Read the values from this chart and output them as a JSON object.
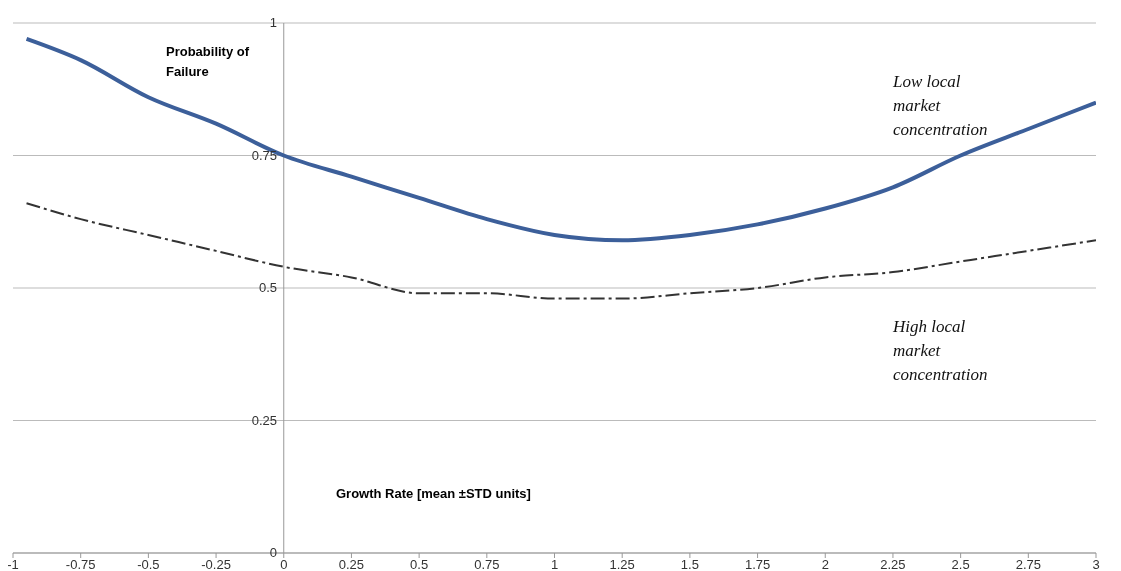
{
  "chart_data": {
    "type": "line",
    "xlabel": "Growth Rate [mean ±STD units]",
    "ylabel": "Probability of Failure",
    "x": [
      -0.95,
      -0.75,
      -0.5,
      -0.25,
      0,
      0.25,
      0.5,
      0.75,
      1,
      1.25,
      1.5,
      1.75,
      2,
      2.25,
      2.5,
      2.75,
      3
    ],
    "series": [
      {
        "name": "Low local market concentration",
        "color": "#3c5f9a",
        "line_style": "solid",
        "values": [
          0.97,
          0.93,
          0.86,
          0.81,
          0.75,
          0.71,
          0.67,
          0.63,
          0.6,
          0.59,
          0.6,
          0.62,
          0.65,
          0.69,
          0.75,
          0.8,
          0.85
        ]
      },
      {
        "name": "High local market concentration",
        "color": "#333333",
        "line_style": "dashed",
        "values": [
          0.66,
          0.63,
          0.6,
          0.57,
          0.54,
          0.52,
          0.49,
          0.49,
          0.48,
          0.48,
          0.49,
          0.5,
          0.52,
          0.53,
          0.55,
          0.57,
          0.59
        ]
      }
    ],
    "xlim": [
      -1,
      3
    ],
    "xticks": [
      -1,
      -0.75,
      -0.5,
      -0.25,
      0,
      0.25,
      0.5,
      0.75,
      1,
      1.25,
      1.5,
      1.75,
      2,
      2.25,
      2.5,
      2.75,
      3
    ],
    "ylim": [
      0,
      1
    ],
    "yticks": [
      0,
      0.25,
      0.5,
      0.75,
      1
    ],
    "grid": "y",
    "legend": false,
    "marker": "none"
  }
}
